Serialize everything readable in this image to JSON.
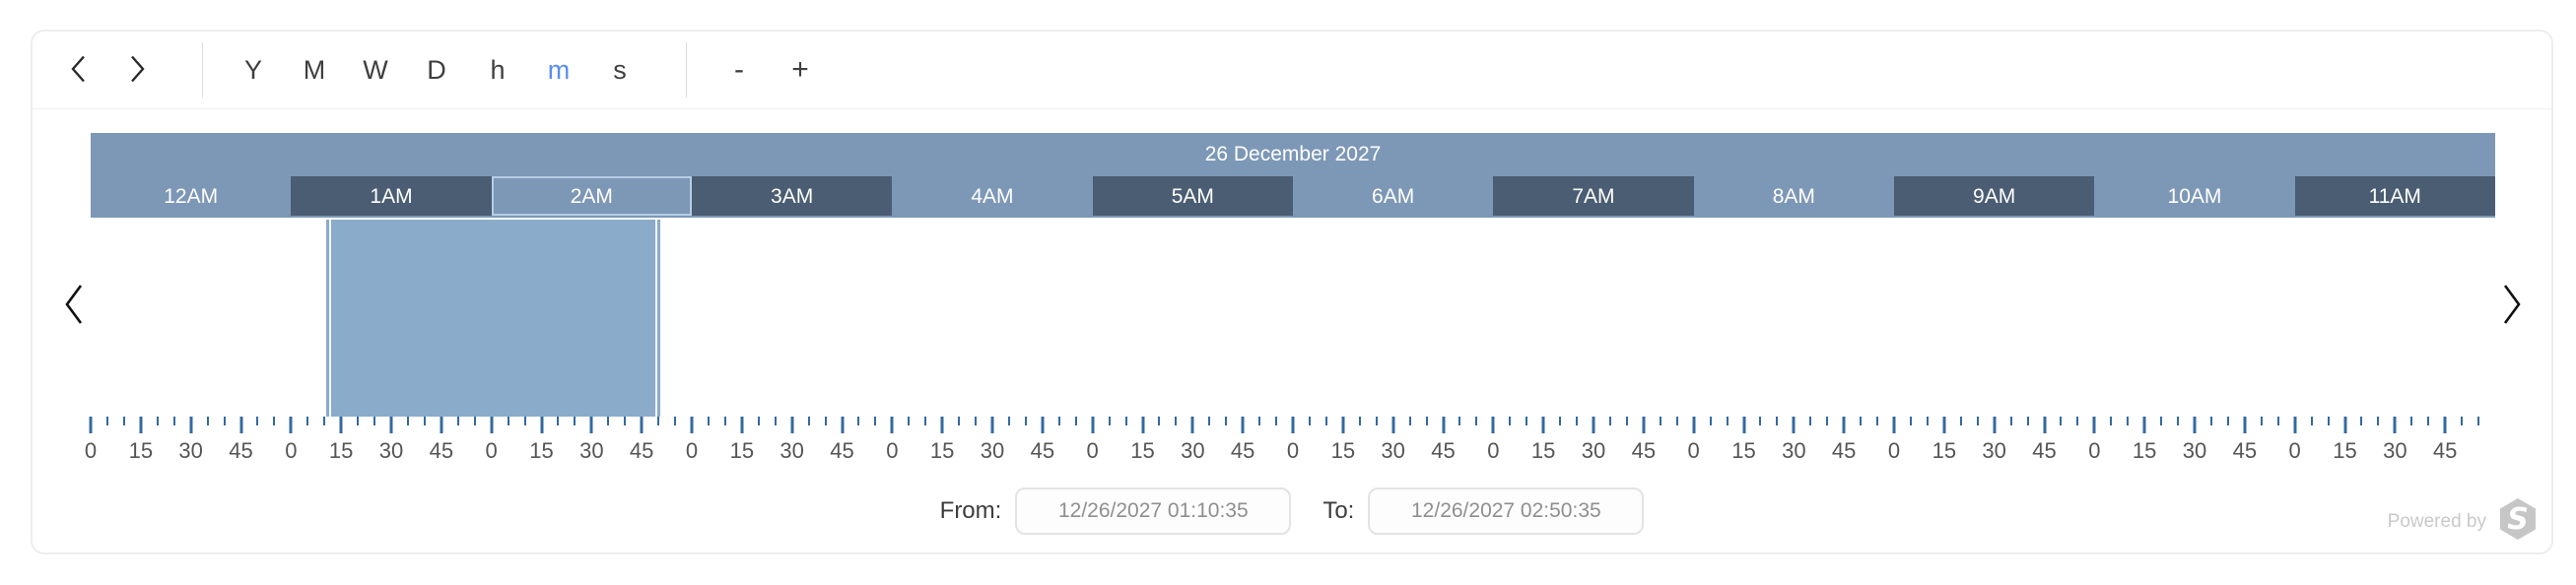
{
  "toolbar": {
    "prev_icon": "chevron-left",
    "next_icon": "chevron-right",
    "units": [
      "Y",
      "M",
      "W",
      "D",
      "h",
      "m",
      "s"
    ],
    "active_unit": "m",
    "zoom_out_label": "-",
    "zoom_in_label": "+"
  },
  "timeline": {
    "date_header": "26 December 2027",
    "hours": [
      "12AM",
      "1AM",
      "2AM",
      "3AM",
      "4AM",
      "5AM",
      "6AM",
      "7AM",
      "8AM",
      "9AM",
      "10AM",
      "11AM"
    ],
    "highlighted_hour": "2AM",
    "total_minutes": 720,
    "selection": {
      "from_min": 70.58,
      "to_min": 170.58
    },
    "ruler": {
      "minor_step_min": 5,
      "major_step_min": 15,
      "major_labels": [
        "0",
        "15",
        "30",
        "45"
      ]
    }
  },
  "footer": {
    "from_label": "From:",
    "from_value": "12/26/2027 01:10:35",
    "to_label": "To:",
    "to_value": "12/26/2027 02:50:35",
    "powered_by": "Powered by"
  },
  "colors": {
    "band_light": "#7d98b6",
    "band_dark": "#4a5d72",
    "selection_fill": "#8babca",
    "highlight_border": "#b5cde5",
    "tick_blue": "#35699e",
    "active_unit_blue": "#5a8ef0"
  }
}
